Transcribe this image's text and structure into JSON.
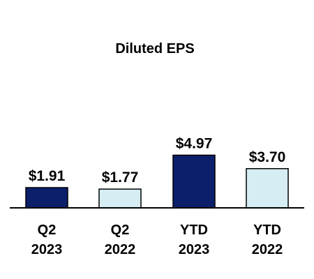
{
  "chart_data": {
    "type": "bar",
    "title": "Diluted EPS",
    "categories": [
      [
        "Q2",
        "2023"
      ],
      [
        "Q2",
        "2022"
      ],
      [
        "YTD",
        "2023"
      ],
      [
        "YTD",
        "2022"
      ]
    ],
    "values": [
      1.91,
      1.77,
      4.97,
      3.7
    ],
    "data_labels": [
      "$1.91",
      "$1.77",
      "$4.97",
      "$3.70"
    ],
    "bar_colors": [
      "#0b1f6b",
      "#d6eef3",
      "#0b1f6b",
      "#d6eef3"
    ],
    "bar_outline": "#000000",
    "xlabel": "",
    "ylabel": "",
    "ylim": [
      0,
      5.0
    ],
    "grid": false,
    "legend": "none"
  }
}
